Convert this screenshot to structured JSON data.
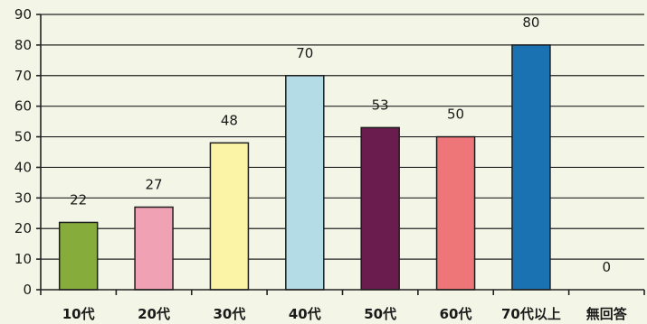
{
  "chart_data": {
    "type": "bar",
    "categories": [
      "10代",
      "20代",
      "30代",
      "40代",
      "50代",
      "60代",
      "70代以上",
      "無回答"
    ],
    "values": [
      22,
      27,
      48,
      70,
      53,
      50,
      80,
      0
    ],
    "data_labels": [
      "22",
      "27",
      "48",
      "70",
      "53",
      "50",
      "80",
      "0"
    ],
    "y_ticks": [
      "0",
      "10",
      "20",
      "30",
      "40",
      "50",
      "60",
      "70",
      "80",
      "90"
    ],
    "ylim": [
      0,
      90
    ],
    "y_tick_step": 10,
    "grid": true,
    "legend": "none",
    "bar_colors": [
      "#86ac3c",
      "#f0a2b4",
      "#fbf4a6",
      "#b4dce6",
      "#6b1c4f",
      "#ee7679",
      "#1a72b3",
      "#cccccc"
    ]
  }
}
